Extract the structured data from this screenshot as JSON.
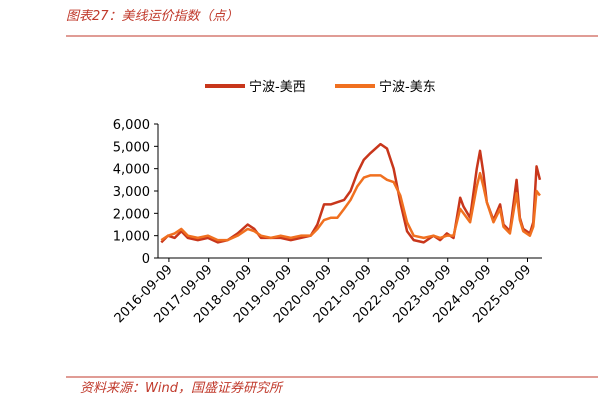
{
  "chart_data": {
    "type": "line",
    "title": "图表27：美线运价指数（点）",
    "source": "资料来源：Wind，国盛证券研究所",
    "x": [
      "2016-07-01",
      "2016-09-01",
      "2016-11-01",
      "2017-01-01",
      "2017-03-01",
      "2017-06-01",
      "2017-09-01",
      "2017-12-01",
      "2018-03-01",
      "2018-06-01",
      "2018-09-01",
      "2018-11-01",
      "2019-01-01",
      "2019-04-01",
      "2019-07-01",
      "2019-10-01",
      "2020-01-01",
      "2020-04-01",
      "2020-06-01",
      "2020-08-01",
      "2020-10-01",
      "2020-12-01",
      "2021-02-01",
      "2021-04-01",
      "2021-06-01",
      "2021-08-01",
      "2021-10-01",
      "2022-01-01",
      "2022-03-01",
      "2022-05-01",
      "2022-07-01",
      "2022-09-01",
      "2022-11-01",
      "2023-02-01",
      "2023-05-01",
      "2023-07-01",
      "2023-09-01",
      "2023-11-01",
      "2024-01-01",
      "2024-02-01",
      "2024-04-01",
      "2024-06-01",
      "2024-07-01",
      "2024-08-01",
      "2024-09-01",
      "2024-11-01",
      "2025-01-01",
      "2025-02-01",
      "2025-04-01",
      "2025-06-01",
      "2025-07-01",
      "2025-08-01",
      "2025-10-01",
      "2025-11-01",
      "2025-12-01",
      "2026-01-01"
    ],
    "series": [
      {
        "name": "宁波-美西",
        "color": "#c8361b",
        "values": [
          700,
          1000,
          900,
          1200,
          900,
          800,
          900,
          700,
          800,
          1100,
          1500,
          1300,
          900,
          900,
          900,
          800,
          900,
          1000,
          1500,
          2400,
          2400,
          2500,
          2600,
          3000,
          3800,
          4400,
          4700,
          5100,
          4900,
          4000,
          2500,
          1200,
          800,
          700,
          1000,
          800,
          1100,
          900,
          2700,
          2300,
          1800,
          4000,
          4800,
          3800,
          2500,
          1700,
          2400,
          1500,
          1200,
          3500,
          1800,
          1300,
          1100,
          1600,
          4100,
          3500
        ]
      },
      {
        "name": "宁波-美东",
        "color": "#f07020",
        "values": [
          800,
          1000,
          1100,
          1300,
          1000,
          900,
          1000,
          800,
          800,
          1000,
          1300,
          1200,
          1000,
          900,
          1000,
          900,
          1000,
          1000,
          1300,
          1700,
          1800,
          1800,
          2200,
          2600,
          3200,
          3600,
          3700,
          3700,
          3500,
          3400,
          2800,
          1600,
          1000,
          900,
          1000,
          900,
          1000,
          1000,
          2200,
          2000,
          1600,
          3200,
          3800,
          3200,
          2500,
          1600,
          2200,
          1400,
          1100,
          2900,
          1700,
          1200,
          1000,
          1400,
          3000,
          2800
        ]
      }
    ],
    "xlim": [
      "2016-06-01",
      "2026-01-20"
    ],
    "xticks": [
      "2016-09-09",
      "2017-09-09",
      "2018-09-09",
      "2019-09-09",
      "2020-09-09",
      "2021-09-09",
      "2022-09-09",
      "2023-09-09",
      "2024-09-09",
      "2025-09-09"
    ],
    "ylim": [
      0,
      6000
    ],
    "yticks": [
      0,
      {
        "value": 1000,
        "label": "1,000"
      },
      {
        "value": 2000,
        "label": "2,000"
      },
      {
        "value": 3000,
        "label": "3,000"
      },
      {
        "value": 4000,
        "label": "4,000"
      },
      {
        "value": 5000,
        "label": "5,000"
      },
      {
        "value": 6000,
        "label": "6,000"
      }
    ]
  }
}
